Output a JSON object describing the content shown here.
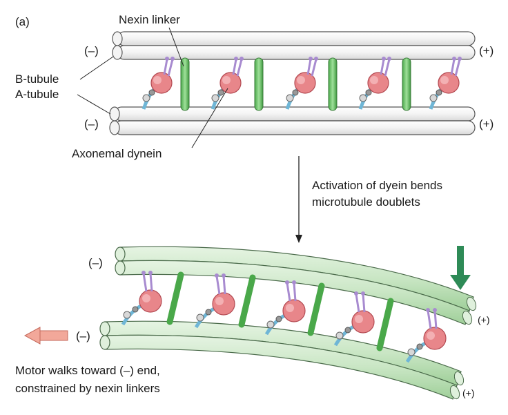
{
  "panel_label": "(a)",
  "labels": {
    "nexin_linker": "Nexin linker",
    "b_tubule": "B-tubule",
    "a_tubule": "A-tubule",
    "axonemal_dynein": "Axonemal dynein",
    "activation_line1": "Activation of dyein bends",
    "activation_line2": "microtubule doublets",
    "motor_line1": "Motor walks toward (–) end,",
    "motor_line2": "constrained by nexin linkers"
  },
  "polarity": {
    "minus": "(–)",
    "plus": "(+)"
  },
  "colors": {
    "tubule_plain": "#ffffff",
    "tubule_green": "#cfe8cc",
    "outline": "#4a4a4a",
    "nexin": "#6bbf6b",
    "dynein_head": "#e8868a",
    "dynein_stalk": "#a88bd0",
    "dynein_tail": "#6fb6d6",
    "green_arrow": "#2e8b57",
    "pink_arrow": "#f2a89a"
  }
}
